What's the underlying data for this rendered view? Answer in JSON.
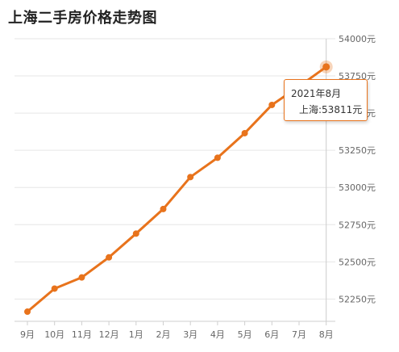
{
  "chart_data": {
    "type": "line",
    "title": "上海二手房价格走势图",
    "categories": [
      "9月",
      "10月",
      "11月",
      "12月",
      "1月",
      "2月",
      "3月",
      "4月",
      "5月",
      "6月",
      "7月",
      "8月"
    ],
    "series": [
      {
        "name": "上海",
        "values": [
          52165,
          52320,
          52395,
          52530,
          52690,
          52855,
          53070,
          53200,
          53365,
          53555,
          53680,
          53811
        ]
      }
    ],
    "ylim": [
      52100,
      54000
    ],
    "yticks": [
      52250,
      52500,
      52750,
      53000,
      53250,
      53500,
      53750,
      54000
    ],
    "ytick_labels": [
      "52250元",
      "52500元",
      "52750元",
      "53000元",
      "53250元",
      "53500元",
      "53750元",
      "54000元"
    ],
    "grid": true,
    "color": "#e8731c",
    "highlight": {
      "index": 11,
      "date_label": "2021年8月",
      "value_label": "上海:53811元"
    }
  }
}
